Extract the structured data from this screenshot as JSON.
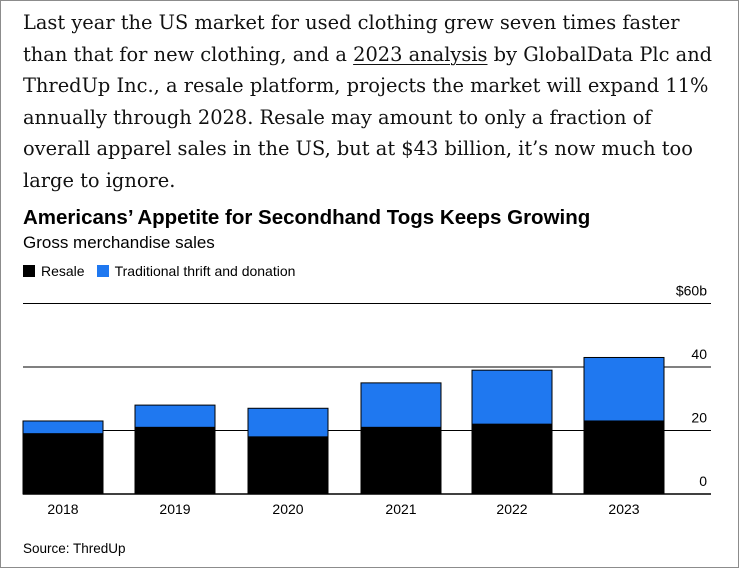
{
  "article": {
    "text_before_link": "Last year the US market for used clothing grew seven times faster than that for new clothing, and a ",
    "link_text": "2023 analysis",
    "text_after_link": " by GlobalData Plc and ThredUp Inc., a resale platform, projects the market will expand 11% annually through 2028. Resale may amount to only a fraction of overall apparel sales in the US, but at $43 billion, it’s now much too large to ignore."
  },
  "chart_data": {
    "type": "bar",
    "stacked": true,
    "title": "Americans’ Appetite for Secondhand Togs Keeps Growing",
    "subtitle": "Gross merchandise sales",
    "categories": [
      "2018",
      "2019",
      "2020",
      "2021",
      "2022",
      "2023"
    ],
    "series": [
      {
        "name": "Resale",
        "color": "#000000",
        "values": [
          19,
          21,
          18,
          21,
          22,
          23
        ]
      },
      {
        "name": "Traditional thrift and donation",
        "color": "#1f78f0",
        "values": [
          4,
          7,
          9,
          14,
          17,
          20
        ]
      }
    ],
    "ylim": [
      0,
      60
    ],
    "yticks": [
      {
        "value": 0,
        "label": "0"
      },
      {
        "value": 20,
        "label": "20"
      },
      {
        "value": 40,
        "label": "40"
      },
      {
        "value": 60,
        "label": "$60b"
      }
    ],
    "y_axis_position": "right",
    "grid": true,
    "legend_position": "top-left",
    "source": "Source: ThredUp"
  }
}
